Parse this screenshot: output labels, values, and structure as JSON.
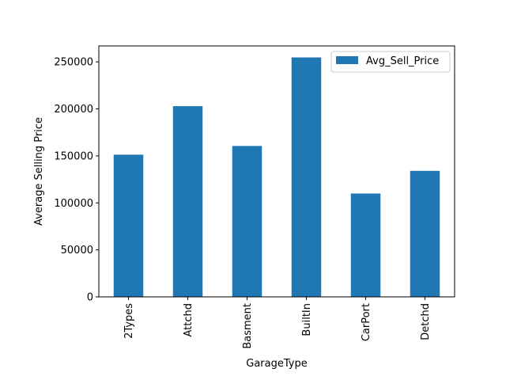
{
  "chart_data": {
    "type": "bar",
    "title": "",
    "xlabel": "GarageType",
    "ylabel": "Average Selling Price",
    "categories": [
      "2Types",
      "Attchd",
      "Basment",
      "BuiltIn",
      "CarPort",
      "Detchd"
    ],
    "series": [
      {
        "name": "Avg_Sell_Price",
        "values": [
          151283,
          202892,
          160570,
          254752,
          109962,
          134091
        ],
        "color": "#1f77b4"
      }
    ],
    "ylim": [
      0,
      267000
    ],
    "yticks": [
      0,
      50000,
      100000,
      150000,
      200000,
      250000
    ],
    "ytick_labels": [
      "0",
      "50000",
      "100000",
      "150000",
      "200000",
      "250000"
    ],
    "grid": false,
    "legend_position": "upper right"
  }
}
